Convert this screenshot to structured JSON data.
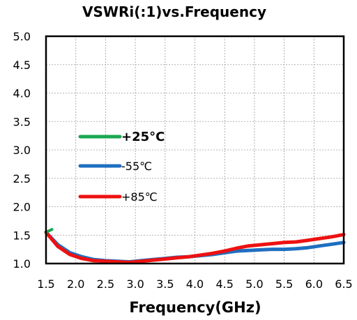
{
  "chart_data": {
    "type": "line",
    "title": "VSWRi(:1)vs.Frequency",
    "xlabel": "Frequency(GHz)",
    "ylabel": "",
    "xlim": [
      1.5,
      6.5
    ],
    "ylim": [
      1.0,
      5.0
    ],
    "xticks": [
      "1.5",
      "2.0",
      "2.5",
      "3.0",
      "3.5",
      "4.0",
      "4.5",
      "5.0",
      "5.5",
      "6.0",
      "6.5"
    ],
    "yticks": [
      "1.0",
      "1.5",
      "2.0",
      "2.5",
      "3.0",
      "3.5",
      "4.0",
      "4.5",
      "5.0"
    ],
    "grid": true,
    "legend_position": "center-left",
    "series": [
      {
        "name": "+25°C",
        "color": "#1aa84f",
        "x": [
          1.5,
          1.6
        ],
        "y": [
          1.55,
          1.6
        ]
      },
      {
        "name": "-55℃",
        "color": "#1f6fc0",
        "x": [
          1.5,
          1.7,
          1.9,
          2.1,
          2.3,
          2.5,
          2.7,
          2.9,
          3.1,
          3.3,
          3.5,
          3.7,
          3.9,
          4.1,
          4.3,
          4.5,
          4.7,
          4.9,
          5.1,
          5.3,
          5.5,
          5.7,
          5.9,
          6.1,
          6.3,
          6.5
        ],
        "y": [
          1.55,
          1.33,
          1.19,
          1.12,
          1.07,
          1.05,
          1.04,
          1.03,
          1.05,
          1.07,
          1.09,
          1.11,
          1.12,
          1.14,
          1.16,
          1.19,
          1.22,
          1.23,
          1.24,
          1.25,
          1.25,
          1.26,
          1.28,
          1.31,
          1.34,
          1.37
        ]
      },
      {
        "name": "+85℃",
        "color": "#ee1111",
        "x": [
          1.5,
          1.7,
          1.9,
          2.1,
          2.3,
          2.5,
          2.7,
          2.9,
          3.1,
          3.3,
          3.5,
          3.7,
          3.9,
          4.1,
          4.3,
          4.5,
          4.7,
          4.9,
          5.1,
          5.3,
          5.5,
          5.7,
          5.9,
          6.1,
          6.3,
          6.5
        ],
        "y": [
          1.55,
          1.3,
          1.16,
          1.09,
          1.05,
          1.04,
          1.03,
          1.02,
          1.04,
          1.06,
          1.08,
          1.1,
          1.12,
          1.15,
          1.18,
          1.22,
          1.27,
          1.31,
          1.33,
          1.35,
          1.37,
          1.38,
          1.41,
          1.44,
          1.47,
          1.51
        ]
      }
    ]
  }
}
